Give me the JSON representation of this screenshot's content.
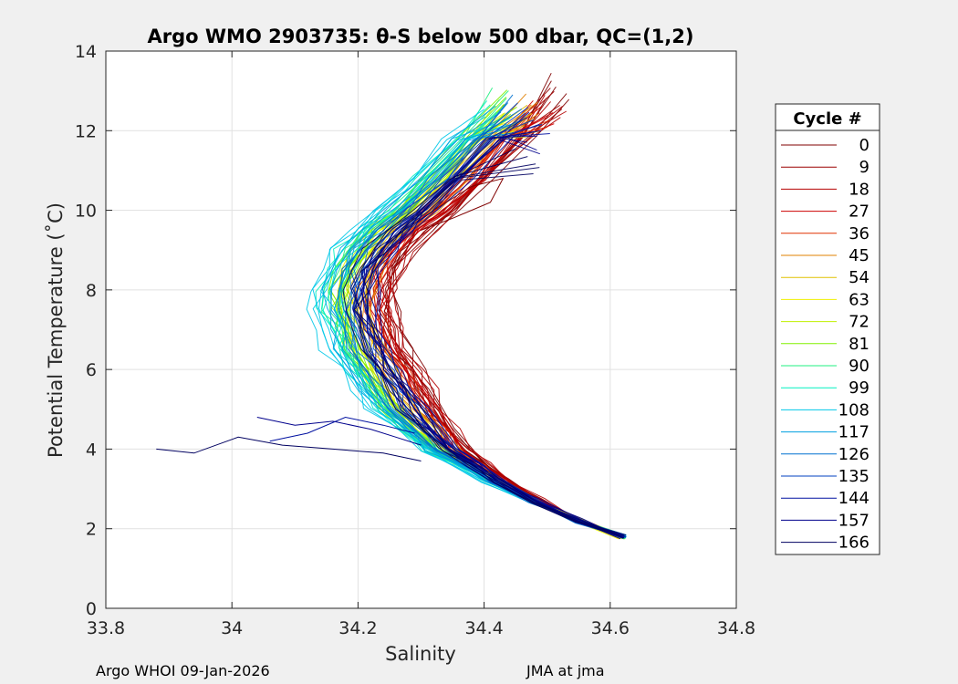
{
  "chart_data": {
    "type": "line",
    "title": "Argo WMO 2903735: θ-S below 500 dbar,  QC=(1,2)",
    "xlabel": "Salinity",
    "ylabel": "Potential Temperature (˚C)",
    "xlim": [
      33.8,
      34.8
    ],
    "ylim": [
      0,
      14
    ],
    "xticks": [
      "33.8",
      "34",
      "34.2",
      "34.4",
      "34.6",
      "34.8"
    ],
    "yticks": [
      "0",
      "2",
      "4",
      "6",
      "8",
      "10",
      "12",
      "14"
    ],
    "grid": true,
    "legend": {
      "title": "Cycle #",
      "placement": "outside-right",
      "entries": [
        {
          "label": "0",
          "color": "#800000"
        },
        {
          "label": "9",
          "color": "#9b0000"
        },
        {
          "label": "18",
          "color": "#b40000"
        },
        {
          "label": "27",
          "color": "#cd0000"
        },
        {
          "label": "36",
          "color": "#e03000"
        },
        {
          "label": "45",
          "color": "#e08000"
        },
        {
          "label": "54",
          "color": "#e0c000"
        },
        {
          "label": "63",
          "color": "#f0f000"
        },
        {
          "label": "72",
          "color": "#c0f000"
        },
        {
          "label": "81",
          "color": "#80f000"
        },
        {
          "label": "90",
          "color": "#20f080"
        },
        {
          "label": "99",
          "color": "#00f0c0"
        },
        {
          "label": "108",
          "color": "#00c8e8"
        },
        {
          "label": "117",
          "color": "#00a0e0"
        },
        {
          "label": "126",
          "color": "#0070d0"
        },
        {
          "label": "135",
          "color": "#0040c0"
        },
        {
          "label": "144",
          "color": "#0010a0"
        },
        {
          "label": "157",
          "color": "#00008c"
        },
        {
          "label": "166",
          "color": "#000060"
        }
      ]
    },
    "series_profile": {
      "s": [
        34.62,
        34.55,
        34.48,
        34.42,
        34.38,
        34.34,
        34.31,
        34.28,
        34.26,
        34.24,
        34.22,
        34.21,
        34.2,
        34.2,
        34.21,
        34.23,
        34.26,
        34.3,
        34.35,
        34.41,
        34.47
      ],
      "t": [
        1.8,
        2.2,
        2.7,
        3.2,
        3.6,
        4.0,
        4.5,
        5.0,
        5.5,
        6.0,
        6.5,
        7.0,
        7.5,
        8.0,
        8.5,
        9.0,
        9.5,
        10.0,
        10.8,
        11.8,
        13.0
      ]
    },
    "series": [
      {
        "cycle": "0",
        "s_offset": 0.05,
        "t_top": 13.4,
        "color": "#800000"
      },
      {
        "cycle": "9",
        "s_offset": 0.04,
        "t_top": 13.1,
        "color": "#9b0000"
      },
      {
        "cycle": "18",
        "s_offset": 0.045,
        "t_top": 12.9,
        "color": "#b40000"
      },
      {
        "cycle": "27",
        "s_offset": 0.03,
        "t_top": 12.8,
        "color": "#cd0000"
      },
      {
        "cycle": "36",
        "s_offset": 0.02,
        "t_top": 12.7,
        "color": "#e03000"
      },
      {
        "cycle": "45",
        "s_offset": 0.01,
        "t_top": 12.9,
        "color": "#e08000"
      },
      {
        "cycle": "54",
        "s_offset": 0.0,
        "t_top": 12.6,
        "color": "#e0c000"
      },
      {
        "cycle": "63",
        "s_offset": -0.02,
        "t_top": 12.4,
        "color": "#f0f000"
      },
      {
        "cycle": "72",
        "s_offset": -0.025,
        "t_top": 12.8,
        "color": "#c0f000"
      },
      {
        "cycle": "81",
        "s_offset": -0.03,
        "t_top": 13.0,
        "color": "#80f000"
      },
      {
        "cycle": "90",
        "s_offset": -0.035,
        "t_top": 13.1,
        "color": "#20f080"
      },
      {
        "cycle": "99",
        "s_offset": -0.045,
        "t_top": 12.8,
        "color": "#00f0c0"
      },
      {
        "cycle": "108",
        "s_offset": -0.06,
        "t_top": 12.5,
        "color": "#00c8e8"
      },
      {
        "cycle": "117",
        "s_offset": -0.04,
        "t_top": 12.6,
        "color": "#00a0e0"
      },
      {
        "cycle": "126",
        "s_offset": -0.02,
        "t_top": 12.9,
        "color": "#0070d0"
      },
      {
        "cycle": "135",
        "s_offset": 0.0,
        "t_top": 12.7,
        "color": "#0040c0"
      },
      {
        "cycle": "144",
        "s_offset": 0.015,
        "t_top": 12.5,
        "color": "#0010a0"
      },
      {
        "cycle": "157",
        "s_offset": 0.01,
        "t_top": 12.0,
        "color": "#00008c"
      },
      {
        "cycle": "166",
        "s_offset": 0.0,
        "t_top": 11.5,
        "color": "#000060"
      }
    ],
    "outlier_segments": [
      {
        "cycle": "166",
        "s": [
          33.88,
          33.94,
          34.01,
          34.08,
          34.16,
          34.24,
          34.3
        ],
        "t": [
          4.0,
          3.9,
          4.3,
          4.1,
          4.0,
          3.9,
          3.7
        ],
        "color": "#000060"
      },
      {
        "cycle": "157",
        "s": [
          34.04,
          34.1,
          34.16,
          34.22,
          34.26,
          34.3
        ],
        "t": [
          4.8,
          4.6,
          4.7,
          4.5,
          4.3,
          4.1
        ],
        "color": "#00008c"
      },
      {
        "cycle": "144",
        "s": [
          34.06,
          34.12,
          34.18,
          34.24,
          34.29
        ],
        "t": [
          4.2,
          4.4,
          4.8,
          4.6,
          4.4
        ],
        "color": "#0010a0"
      },
      {
        "cycle": "0",
        "s": [
          34.32,
          34.38,
          34.43,
          34.41,
          34.35,
          34.3
        ],
        "t": [
          10.0,
          10.6,
          10.8,
          10.2,
          9.8,
          9.5
        ],
        "color": "#800000"
      }
    ]
  },
  "footer": {
    "left": "Argo WHOI 09-Jan-2026",
    "right": "JMA at jma"
  }
}
